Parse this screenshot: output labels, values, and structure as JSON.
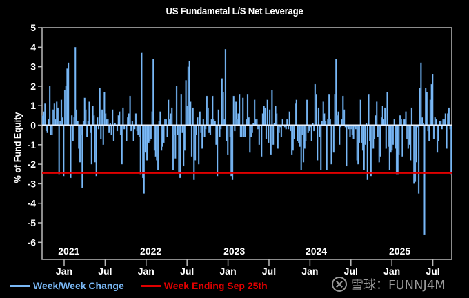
{
  "chart_data": {
    "type": "bar",
    "title": "US Fundametal L/S Net Leverage",
    "xlabel": "",
    "ylabel": "% of Fund Equity",
    "ylim": [
      -6.5,
      5
    ],
    "yticks": [
      5,
      4,
      3,
      2,
      1,
      0,
      -1,
      -2,
      -3,
      -4,
      -5,
      -6
    ],
    "x_range_weeks": [
      0,
      260
    ],
    "x_tick_labels": [
      {
        "label": "Jan",
        "week": 14
      },
      {
        "label": "Jul",
        "week": 40
      },
      {
        "label": "Jan",
        "week": 66
      },
      {
        "label": "Jul",
        "week": 92
      },
      {
        "label": "Jan",
        "week": 118
      },
      {
        "label": "Jul",
        "week": 144
      },
      {
        "label": "Jan",
        "week": 170
      },
      {
        "label": "Jul",
        "week": 196
      },
      {
        "label": "Jan",
        "week": 222
      },
      {
        "label": "Jul",
        "week": 248
      }
    ],
    "year_labels": [
      {
        "label": "2021",
        "week": 17
      },
      {
        "label": "2022",
        "week": 69
      },
      {
        "label": "2023",
        "week": 122
      },
      {
        "label": "2024",
        "week": 174
      },
      {
        "label": "2025",
        "week": 227
      }
    ],
    "grid": false,
    "legend_placement": "bottom-left",
    "series": [
      {
        "name": "Week/Week Change",
        "color": "#7ab8f5",
        "values": [
          0.5,
          0.7,
          1.1,
          -0.3,
          -0.4,
          0.3,
          2.0,
          -0.5,
          -0.5,
          0.8,
          1.1,
          0.3,
          1.2,
          0.9,
          -2.5,
          0.2,
          1.3,
          0.4,
          -2.6,
          1.8,
          2.0,
          2.9,
          3.2,
          0.0,
          -2.7,
          0.5,
          -0.8,
          0.4,
          4.0,
          0.8,
          0.2,
          -1.2,
          -1.9,
          -0.5,
          -3.2,
          0.2,
          1.4,
          0.8,
          -0.6,
          0.2,
          1.2,
          -0.4,
          -2.0,
          1.0,
          0.5,
          -1.9,
          -2.6,
          0.4,
          -0.2,
          1.9,
          -0.7,
          0.8,
          -1.0,
          1.7,
          0.6,
          0.3,
          0.3,
          -0.4,
          0.1,
          -0.5,
          0.8,
          -0.8,
          0.1,
          0.0,
          -0.3,
          0.5,
          0.7,
          -0.5,
          -2.0,
          0.9,
          -0.2,
          0.0,
          -0.8,
          0.4,
          0.6,
          1.5,
          -0.3,
          0.2,
          -0.8,
          -0.2,
          0.6,
          -0.3,
          -0.5,
          -0.6,
          -2.5,
          3.7,
          -2.7,
          -3.5,
          -1.4,
          -1.8,
          -1.8,
          -0.9,
          -0.8,
          -0.7,
          0.7,
          3.4,
          -1.3,
          -1.6,
          -1.8,
          -2.3,
          0.2,
          0.7,
          -1.3,
          -1.1,
          -0.9,
          0.3,
          0.3,
          -0.6,
          1.3,
          0.3,
          0.6,
          0.9,
          -2.3,
          -0.5,
          -1.7,
          2.0,
          -0.5,
          -2.4,
          -2.7,
          1.6,
          -0.4,
          -2.1,
          -1.3,
          2.3,
          1.0,
          3.0,
          3.3,
          1.2,
          -1.6,
          0.9,
          -2.8,
          -1.8,
          -0.5,
          0.4,
          -2.0,
          0.7,
          -0.4,
          -1.2,
          0.3,
          -0.6,
          -0.2,
          1.5,
          0.9,
          -0.4,
          -0.5,
          0.3,
          1.5,
          0.3,
          0.2,
          -1.0,
          -2.6,
          0.8,
          -0.6,
          -0.2,
          2.4,
          1.7,
          0.3,
          3.9,
          -0.8,
          -1.5,
          0.0,
          -0.6,
          -2.6,
          -2.8,
          1.5,
          -0.3,
          1.2,
          0.3,
          0.6,
          1.6,
          -0.6,
          -0.6,
          1.4,
          -0.6,
          -0.6,
          0.3,
          1.6,
          0.4,
          -1.4,
          -0.6,
          -0.4,
          0.1,
          1.3,
          0.3,
          0.3,
          -0.2,
          -1.0,
          0.0,
          -1.6,
          0.6,
          1.0,
          0.9,
          -0.7,
          1.3,
          -0.9,
          0.8,
          -1.5,
          1.8,
          -1.0,
          0.1,
          1.0,
          0.6,
          -1.2,
          -0.4,
          -0.1,
          -0.6,
          0.3,
          0.0,
          -0.1,
          -0.2,
          0.3,
          -0.2,
          0.7,
          -0.3,
          -1.5,
          -1.3,
          -0.7,
          1.1,
          1.3,
          -0.8,
          -0.9,
          -1.1,
          -2.3,
          -0.5,
          -1.9,
          -1.2,
          -0.8,
          1.3,
          -0.4,
          -0.3,
          -0.1,
          -0.8,
          0.1,
          -0.3,
          2.1,
          1.6,
          -1.8,
          0.9,
          -0.6,
          -2.3,
          0.2,
          1.2,
          0.6,
          0.2,
          -2.3,
          0.3,
          1.6,
          0.3,
          -2.0,
          0.0,
          -1.4,
          1.6,
          3.4,
          0.5,
          0.7,
          -1.0,
          -0.1,
          0.3,
          1.5,
          0.8,
          -0.1,
          -2.1,
          -0.1,
          -0.2,
          -0.6,
          -0.2,
          -0.5,
          -0.7,
          -0.1,
          -0.2,
          -1.8,
          -2.0,
          -0.9,
          1.3,
          -0.9,
          -1.3,
          -2.3,
          -1.0,
          0.1,
          -2.8,
          1.6,
          -0.8,
          -2.6,
          0.0,
          -1.2,
          -0.7,
          0.5,
          1.2,
          -0.6,
          -1.9,
          -1.6,
          0.4,
          1.0,
          0.3,
          0.9,
          -1.2,
          1.7,
          -1.1,
          -2.3,
          -1.4,
          -1.3,
          -1.0,
          0.3,
          -1.2,
          -2.5,
          -2.5,
          -1.5,
          0.5,
          0.3,
          -1.6,
          0.3,
          0.3,
          0.7,
          -0.7,
          -1.2,
          -1.0,
          -1.8,
          0.9,
          0.0,
          -3.0,
          -2.9,
          -1.9,
          -0.1,
          -3.5,
          1.9,
          3.2,
          0.4,
          0.1,
          -5.6,
          1.9,
          1.7,
          -0.3,
          -0.8,
          1.3,
          2.1,
          2.6,
          -0.7,
          0.4,
          0.3,
          -1.4,
          -0.8,
          0.2,
          0.2,
          -0.2,
          0.3,
          0.3,
          0.6,
          -1.2,
          0.6,
          0.9,
          -0.2,
          -2.5
        ]
      },
      {
        "name": "Week Ending Sep 25th",
        "color": "#e00000",
        "type": "hline",
        "value": -2.45
      }
    ]
  },
  "legend": {
    "items": [
      {
        "label": "Week/Week Change",
        "color": "#7ab8f5"
      },
      {
        "label": "Week Ending Sep 25th",
        "color": "#e00000"
      }
    ]
  },
  "watermark": {
    "text": "雪球：FUNNJ4M"
  }
}
